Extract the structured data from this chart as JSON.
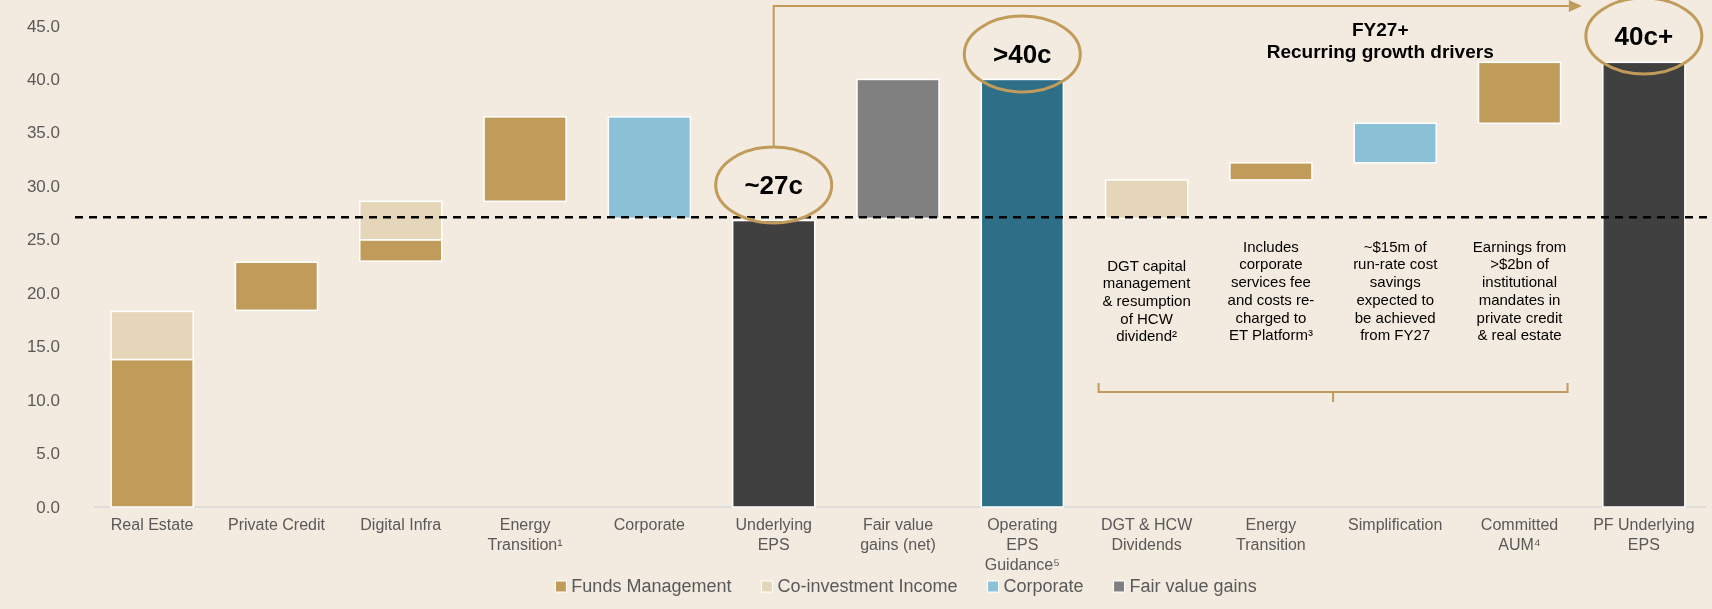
{
  "chart_data": {
    "type": "bar",
    "categories": [
      "Real Estate",
      "Private Credit",
      "Digital Infra",
      "Energy Transition¹",
      "Corporate",
      "Underlying EPS",
      "Fair value gains (net)",
      "Operating EPS Guidance⁵",
      "DGT & HCW Dividends",
      "Energy Transition",
      "Simplification",
      "Committed AUM⁴",
      "PF Underlying EPS"
    ],
    "series": [
      {
        "name": "Funds Management",
        "color": "#c09b5a",
        "base": [
          0,
          18.4,
          23.0,
          28.6,
          null,
          null,
          null,
          null,
          null,
          30.6,
          null,
          35.9,
          null
        ],
        "values": [
          13.8,
          4.5,
          2.0,
          7.9,
          null,
          null,
          null,
          null,
          null,
          1.6,
          null,
          5.7,
          null
        ]
      },
      {
        "name": "Co-investment Income",
        "color": "#e5d5b9",
        "base": [
          13.8,
          null,
          25.0,
          null,
          null,
          null,
          null,
          null,
          27.0,
          null,
          null,
          null,
          null
        ],
        "values": [
          4.5,
          null,
          3.6,
          null,
          null,
          null,
          null,
          null,
          3.6,
          null,
          null,
          null,
          null
        ]
      },
      {
        "name": "Corporate",
        "color": "#8bc1d6",
        "base": [
          null,
          null,
          null,
          null,
          27.0,
          null,
          null,
          null,
          null,
          null,
          32.2,
          null,
          null
        ],
        "values": [
          null,
          null,
          null,
          null,
          9.5,
          null,
          null,
          null,
          null,
          null,
          3.7,
          null,
          null
        ]
      },
      {
        "name": "Fair value gains",
        "color": "#808080",
        "base": [
          null,
          null,
          null,
          null,
          null,
          null,
          27.0,
          null,
          null,
          null,
          null,
          null,
          null
        ],
        "values": [
          null,
          null,
          null,
          null,
          null,
          null,
          13.0,
          null,
          null,
          null,
          null,
          null,
          null
        ]
      },
      {
        "colors": [
          null,
          null,
          null,
          null,
          null,
          "#404040",
          null,
          "#2e6f87",
          null,
          null,
          null,
          null,
          "#404040"
        ],
        "values": [
          null,
          null,
          null,
          null,
          null,
          26.8,
          null,
          40.0,
          null,
          null,
          null,
          null,
          41.6
        ]
      }
    ],
    "ylim": [
      0,
      45
    ],
    "yticks": [
      {
        "value": 0,
        "label": "0.0"
      },
      {
        "value": 5,
        "label": "5.0"
      },
      {
        "value": 10,
        "label": "10.0"
      },
      {
        "value": 15,
        "label": "15.0"
      },
      {
        "value": 20,
        "label": "20.0"
      },
      {
        "value": 25,
        "label": "25.0"
      },
      {
        "value": 30,
        "label": "30.0"
      },
      {
        "value": 35,
        "label": "35.0"
      },
      {
        "value": 40,
        "label": "40.0"
      },
      {
        "value": 45,
        "label": "45.0"
      }
    ],
    "ref_lines": [
      {
        "axis": "y",
        "value": 27.1,
        "color": "#000000",
        "line_style": "dashed"
      }
    ],
    "legend": "bottom",
    "annotations": [
      "~27c",
      ">40c",
      "40c+",
      "FY27+\nRecurring growth drivers",
      "DGT capital\nmanagement\n& resumption\nof HCW\ndividend²",
      "Includes\ncorporate\nservices fee\nand costs re-\ncharged to\nET Platform³",
      "~$15m of\nrun-rate cost\nsavings\nexpected to\nbe achieved\nfrom FY27",
      "Earnings from\n>$2bn of\ninstitutional\nmandates in\nprivate credit\n& real estate"
    ]
  }
}
